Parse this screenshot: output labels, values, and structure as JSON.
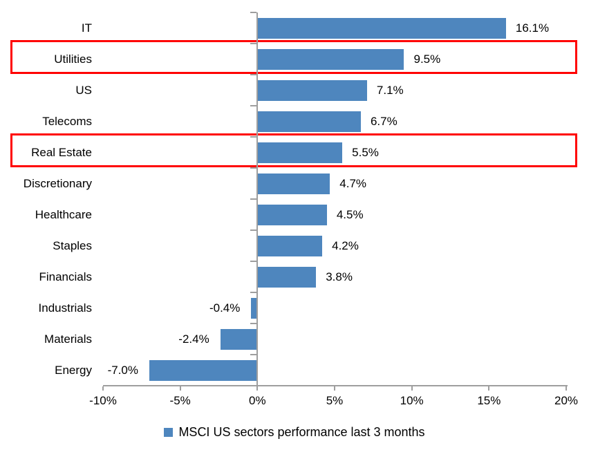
{
  "chart_data": {
    "type": "bar",
    "orientation": "horizontal",
    "title": "",
    "categories": [
      "IT",
      "Utilities",
      "US",
      "Telecoms",
      "Real Estate",
      "Discretionary",
      "Healthcare",
      "Staples",
      "Financials",
      "Industrials",
      "Materials",
      "Energy"
    ],
    "values": [
      16.1,
      9.5,
      7.1,
      6.7,
      5.5,
      4.7,
      4.5,
      4.2,
      3.8,
      -0.4,
      -2.4,
      -7.0
    ],
    "value_labels": [
      "16.1%",
      "9.5%",
      "7.1%",
      "6.7%",
      "5.5%",
      "4.7%",
      "4.5%",
      "4.2%",
      "3.8%",
      "-0.4%",
      "-2.4%",
      "-7.0%"
    ],
    "highlighted_categories": [
      "Utilities",
      "Real Estate"
    ],
    "x_axis": {
      "min": -10,
      "max": 20,
      "tick_step": 5,
      "tick_values": [
        -10,
        -5,
        0,
        5,
        10,
        15,
        20
      ],
      "tick_labels": [
        "-10%",
        "-5%",
        "0%",
        "5%",
        "10%",
        "15%",
        "20%"
      ]
    },
    "legend": {
      "label": "MSCI US sectors performance last 3 months",
      "position": "bottom"
    },
    "colors": {
      "bar": "#4e86be",
      "highlight_border": "#ff0000",
      "axis": "#9e9e9e",
      "text": "#000000"
    },
    "grid": false
  }
}
